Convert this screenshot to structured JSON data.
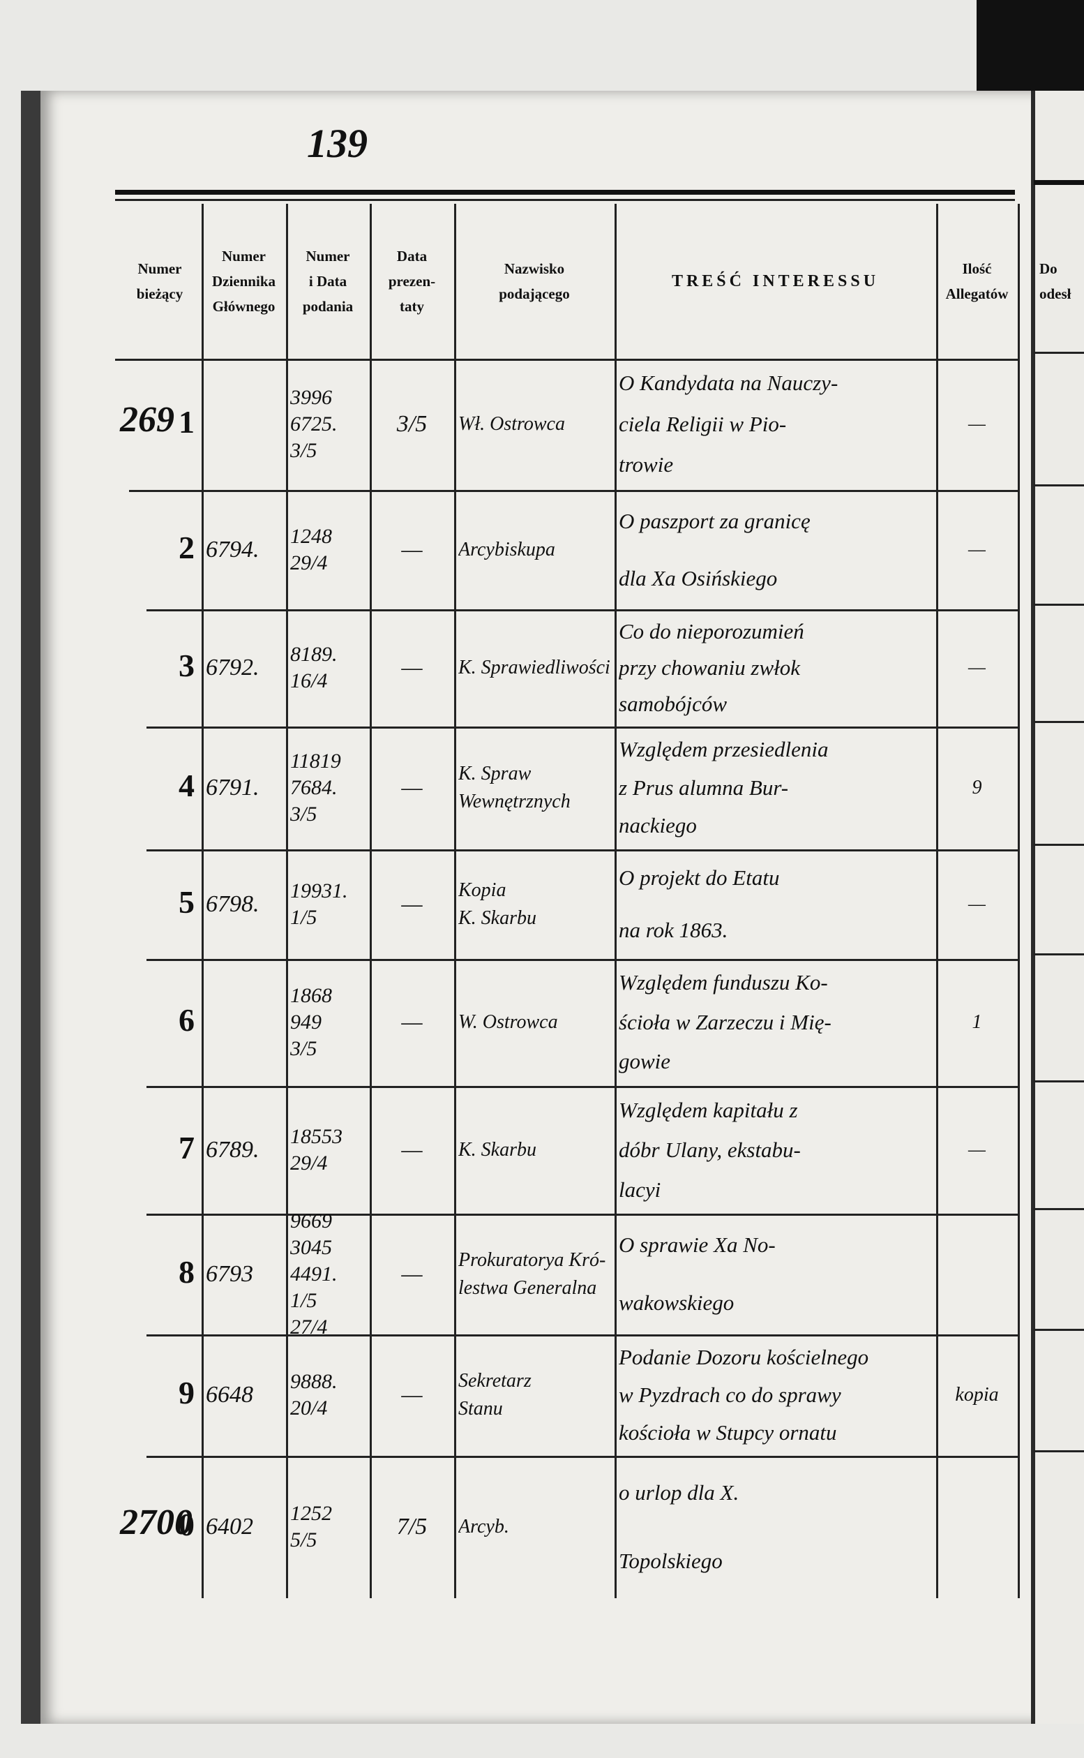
{
  "page_number": "139",
  "table": {
    "headers": [
      [
        "Numer",
        "bieżący"
      ],
      [
        "Numer",
        "Dziennika",
        "Głównego"
      ],
      [
        "Numer",
        "i Data",
        "podania"
      ],
      [
        "Data",
        "prezen-",
        "taty"
      ],
      [
        "Nazwisko",
        "podającego"
      ],
      [
        "TREŚĆ INTERESSU"
      ],
      [
        "Ilość",
        "Allegatów"
      ]
    ],
    "next_page_header": [
      "Do",
      "odesł"
    ],
    "rows": [
      {
        "margin": "269",
        "no": "1",
        "journal": "",
        "number_date": [
          "3996",
          "6725.",
          "3/5"
        ],
        "presented": "3/5",
        "applicant": [
          "Wł. Ostrowca"
        ],
        "content": [
          "O Kandydata na Nauczy-",
          "ciela Religii w Pio-",
          "trowie"
        ],
        "attachments": "—"
      },
      {
        "margin": "",
        "no": "2",
        "journal": "6794.",
        "number_date": [
          "1248",
          "29/4"
        ],
        "presented": "—",
        "applicant": [
          "Arcybiskupa"
        ],
        "content": [
          "O paszport za granicę",
          "dla Xa Osińskiego"
        ],
        "attachments": "—"
      },
      {
        "margin": "",
        "no": "3",
        "journal": "6792.",
        "number_date": [
          "8189.",
          "16/4"
        ],
        "presented": "—",
        "applicant": [
          "K. Sprawiedliwości"
        ],
        "content": [
          "Co do nieporozumień",
          "przy chowaniu zwłok",
          "samobójców"
        ],
        "attachments": "—"
      },
      {
        "margin": "",
        "no": "4",
        "journal": "6791.",
        "number_date": [
          "11819",
          "7684.",
          "3/5"
        ],
        "presented": "—",
        "applicant": [
          "K. Spraw Wewnętrznych"
        ],
        "content": [
          "Względem przesiedlenia",
          "z Prus alumna Bur-",
          "nackiego"
        ],
        "attachments": "9"
      },
      {
        "margin": "",
        "no": "5",
        "journal": "6798.",
        "number_date": [
          "19931.",
          "1/5"
        ],
        "presented": "—",
        "applicant": [
          "Kopia",
          "K. Skarbu"
        ],
        "content": [
          "O projekt do Etatu",
          "na rok 1863."
        ],
        "attachments": "—"
      },
      {
        "margin": "",
        "no": "6",
        "journal": "",
        "number_date": [
          "1868",
          "949",
          "3/5"
        ],
        "presented": "—",
        "applicant": [
          "W. Ostrowca"
        ],
        "content": [
          "Względem funduszu Ko-",
          "ścioła w Zarzeczu i Mię-",
          "gowie"
        ],
        "attachments": "1"
      },
      {
        "margin": "",
        "no": "7",
        "journal": "6789.",
        "number_date": [
          "18553",
          "29/4"
        ],
        "presented": "—",
        "applicant": [
          "K. Skarbu"
        ],
        "content": [
          "Względem kapitału z",
          "dóbr Ulany, ekstabu-",
          "lacyi"
        ],
        "attachments": "—"
      },
      {
        "margin": "",
        "no": "8",
        "journal": "6793",
        "number_date": [
          "9669 3045",
          "4491. 1/5",
          "27/4"
        ],
        "presented": "—",
        "applicant": [
          "Prokuratorya Kró-",
          "lestwa Generalna"
        ],
        "content": [
          "O sprawie Xa No-",
          "wakowskiego"
        ],
        "attachments": ""
      },
      {
        "margin": "",
        "no": "9",
        "journal": "6648",
        "number_date": [
          "9888.",
          "20/4"
        ],
        "presented": "—",
        "applicant": [
          "Sekretarz",
          "Stanu"
        ],
        "content": [
          "Podanie Dozoru kościelnego",
          "w Pyzdrach co do sprawy",
          "kościoła w Stupcy ornatu"
        ],
        "attachments": "kopia"
      },
      {
        "margin": "2700",
        "no": "0",
        "journal": "6402",
        "number_date": [
          "1252",
          "5/5"
        ],
        "presented": "7/5",
        "applicant": [
          "Arcyb."
        ],
        "content": [
          "o urlop dla X. ",
          "Topolskiego"
        ],
        "attachments": ""
      }
    ]
  }
}
